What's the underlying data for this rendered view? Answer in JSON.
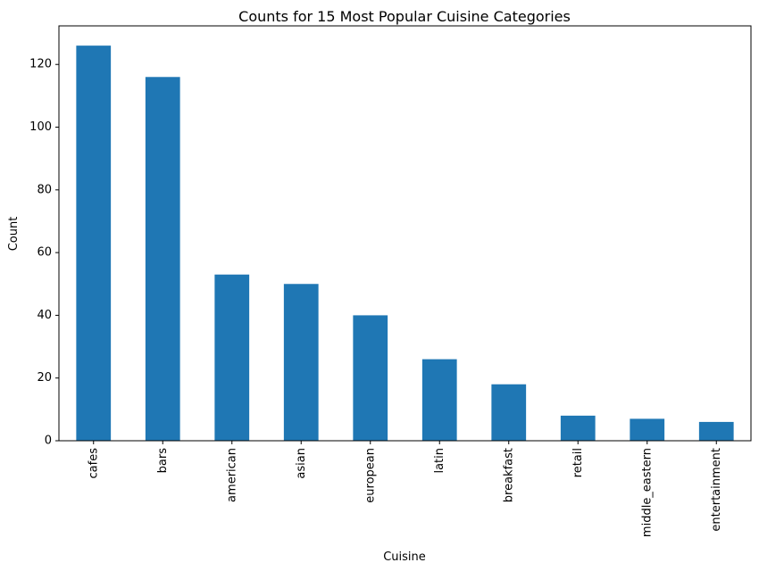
{
  "chart_data": {
    "type": "bar",
    "title": "Counts for 15 Most Popular Cuisine Categories",
    "xlabel": "Cuisine",
    "ylabel": "Count",
    "categories": [
      "cafes",
      "bars",
      "american",
      "asian",
      "european",
      "latin",
      "breakfast",
      "retail",
      "middle_eastern",
      "entertainment"
    ],
    "values": [
      126,
      116,
      53,
      50,
      40,
      26,
      18,
      8,
      7,
      6
    ],
    "ylim": [
      0,
      132.3
    ],
    "yticks": [
      0,
      20,
      40,
      60,
      80,
      100,
      120
    ],
    "bar_color": "#1f77b4",
    "grid": false,
    "legend": "none"
  }
}
